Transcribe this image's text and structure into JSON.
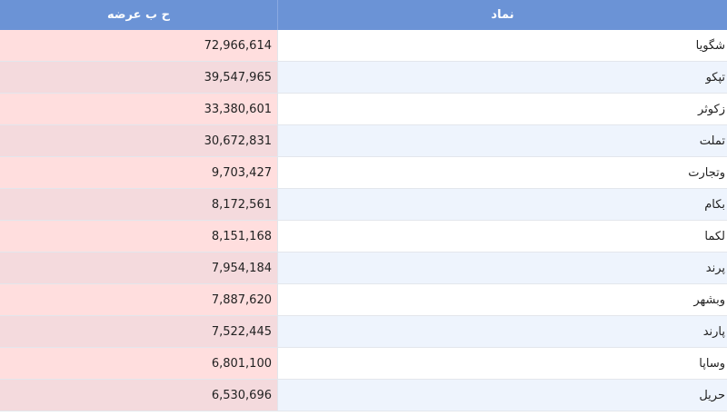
{
  "table": {
    "headers": {
      "symbol": "نماد",
      "volume": "ح ب عرضه"
    },
    "rows": [
      {
        "symbol": "شگویا",
        "volume": "72,966,614"
      },
      {
        "symbol": "تپکو",
        "volume": "39,547,965"
      },
      {
        "symbol": "زکوثر",
        "volume": "33,380,601"
      },
      {
        "symbol": "تملت",
        "volume": "30,672,831"
      },
      {
        "symbol": "وتجارت",
        "volume": "9,703,427"
      },
      {
        "symbol": "بکام",
        "volume": "8,172,561"
      },
      {
        "symbol": "لکما",
        "volume": "8,151,168"
      },
      {
        "symbol": "پرند",
        "volume": "7,954,184"
      },
      {
        "symbol": "وبشهر",
        "volume": "7,887,620"
      },
      {
        "symbol": "پارند",
        "volume": "7,522,445"
      },
      {
        "symbol": "وساپا",
        "volume": "6,801,100"
      },
      {
        "symbol": "حریل",
        "volume": "6,530,696"
      }
    ]
  },
  "colors": {
    "header_bg": "#6b93d6",
    "symbol_odd_bg": "#ffffff",
    "symbol_even_bg": "#eef4fd",
    "volume_odd_bg": "#ffdede",
    "volume_even_bg": "#f4dadd"
  }
}
